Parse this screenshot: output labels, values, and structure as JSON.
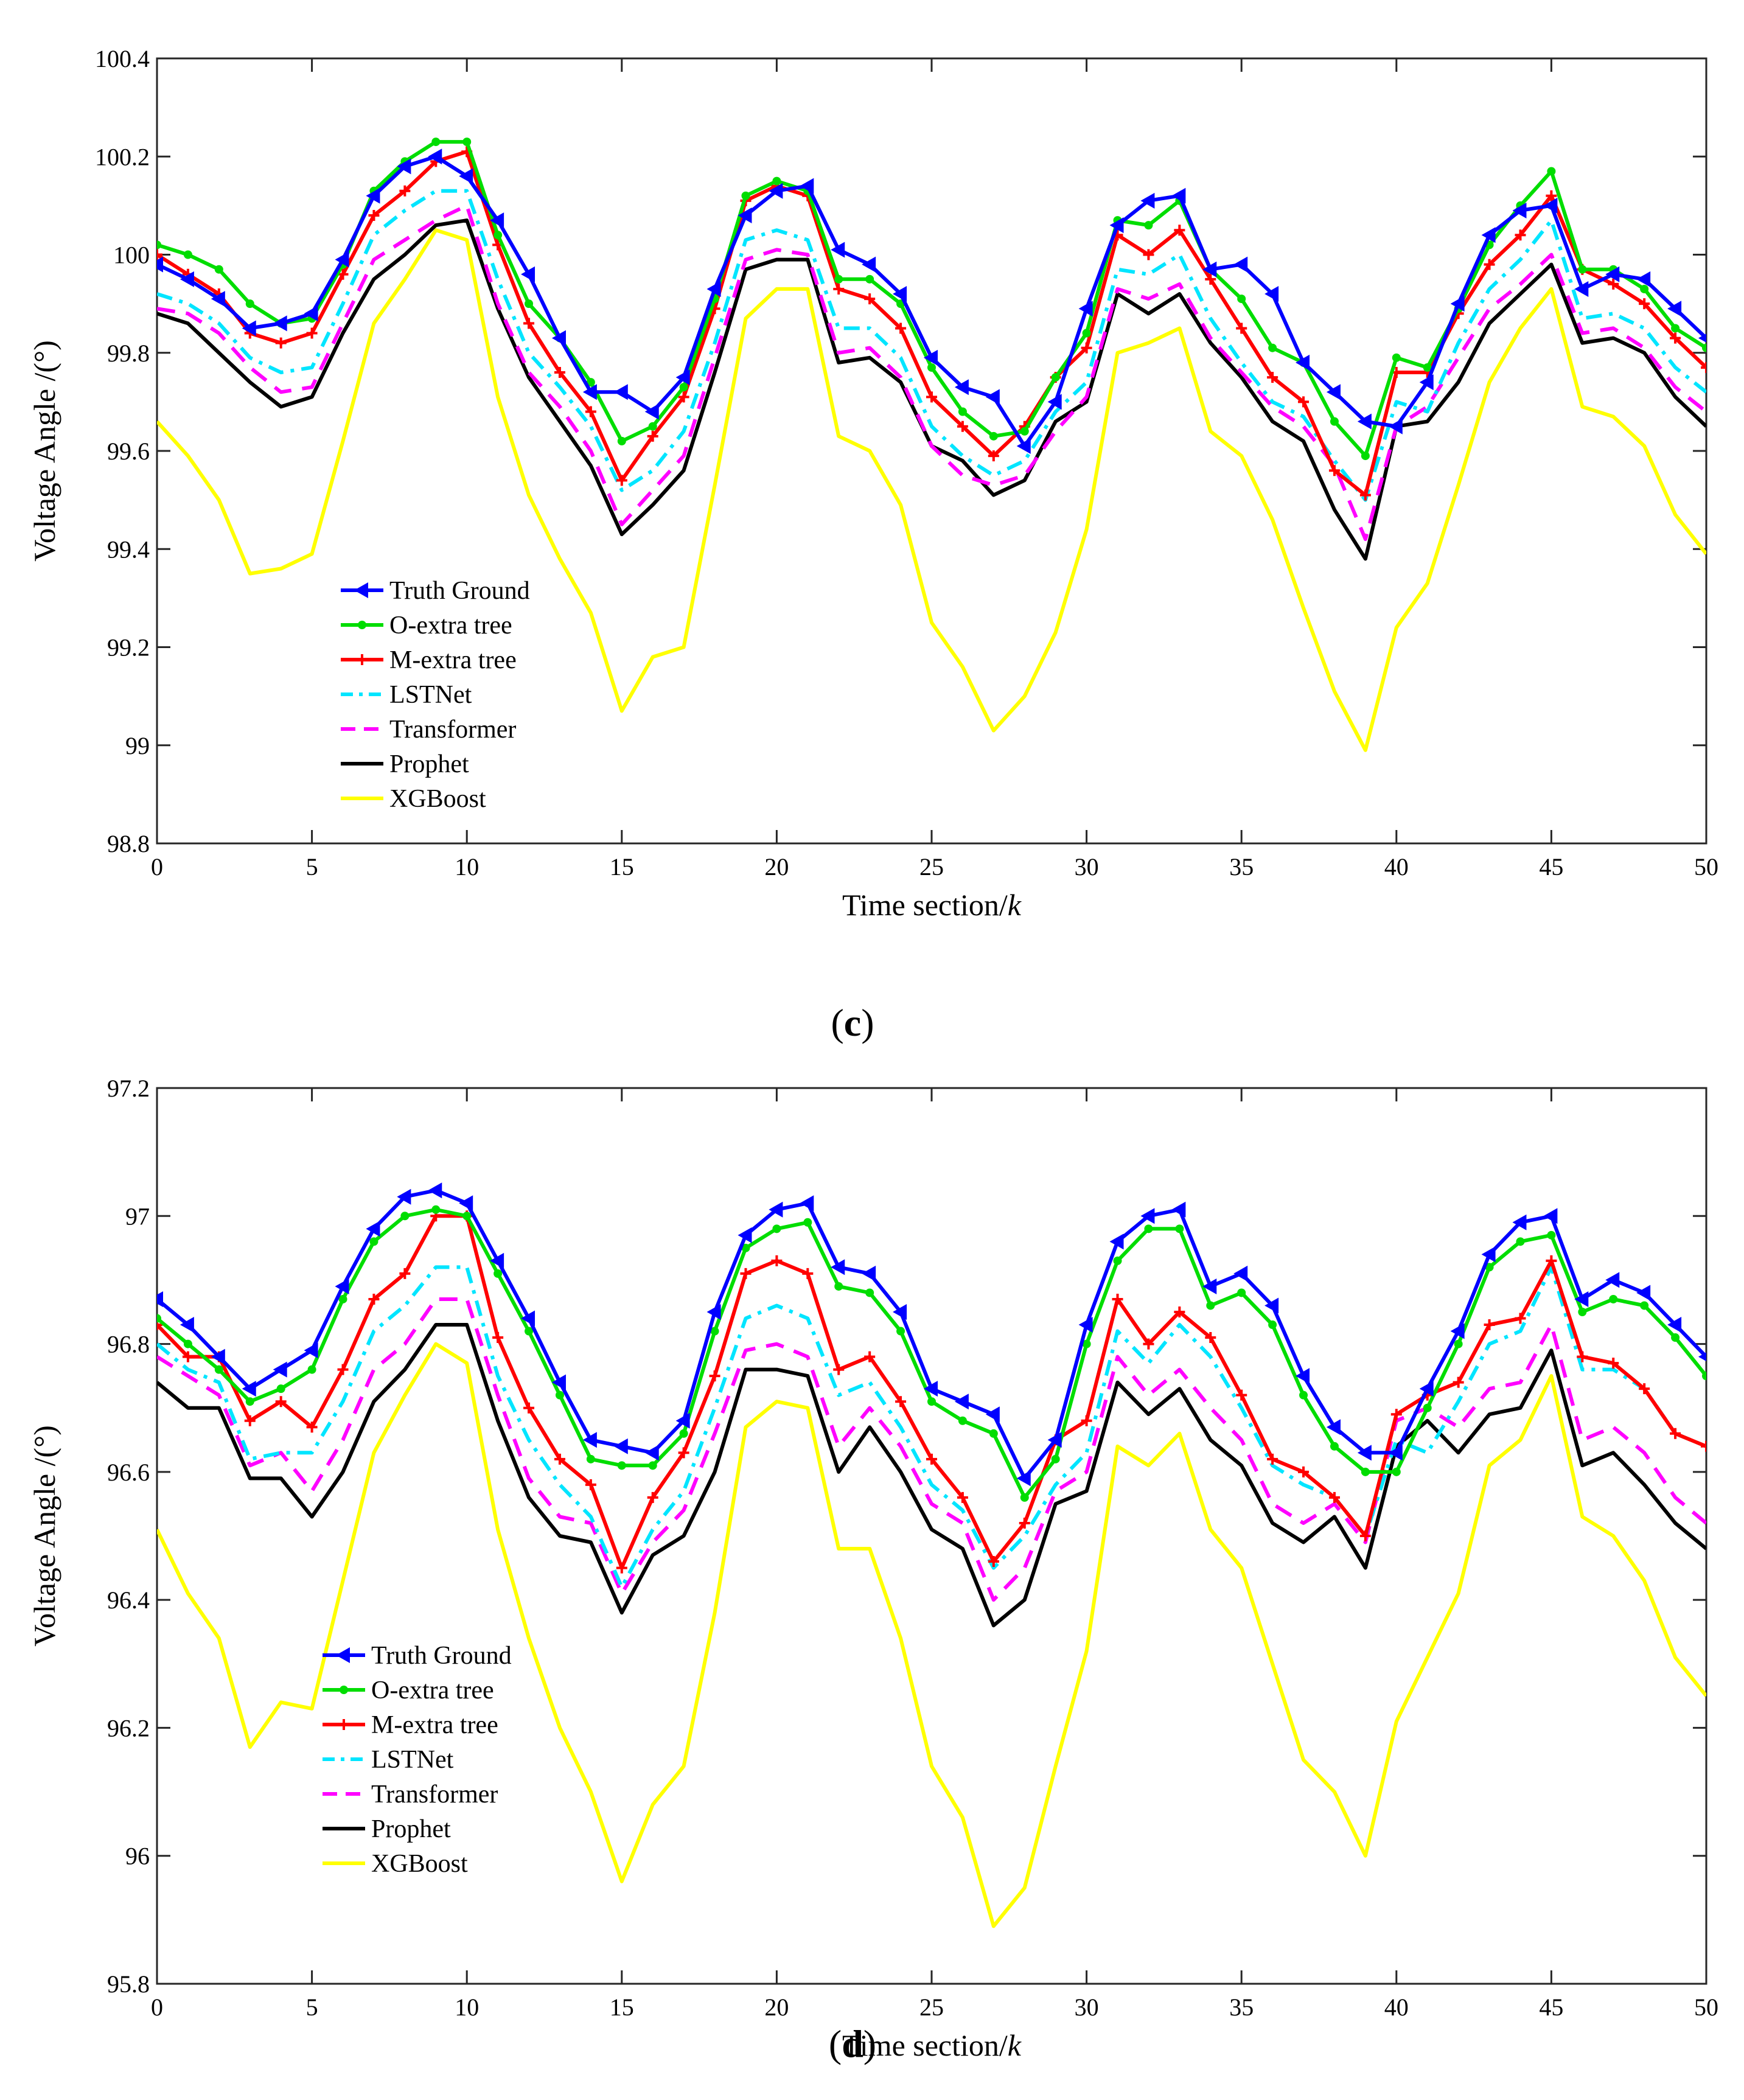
{
  "chart_data": [
    {
      "type": "line",
      "panel": "c",
      "caption": {
        "open": "(",
        "letter": "c",
        "close": ")"
      },
      "xlabel": "Time section/",
      "xlabel_var": "k",
      "ylabel": "Voltage Angle /(°)",
      "xlim": [
        0,
        50
      ],
      "ylim": [
        98.8,
        100.4
      ],
      "xticks": [
        0,
        5,
        10,
        15,
        20,
        25,
        30,
        35,
        40,
        45,
        50
      ],
      "xtick_labels": [
        "0",
        "5",
        "10",
        "15",
        "20",
        "25",
        "30",
        "35",
        "40",
        "45",
        "50"
      ],
      "yticks": [
        98.8,
        99,
        99.2,
        99.4,
        99.6,
        99.8,
        100,
        100.2,
        100.4
      ],
      "ytick_labels": [
        "98.8",
        "99",
        "99.2",
        "99.4",
        "99.6",
        "99.8",
        "100",
        "100.2",
        "100.4"
      ],
      "legend_position": "lower-left",
      "series": [
        {
          "name": "Truth Ground",
          "color": "#0000ff",
          "marker": "left-triangle",
          "dash": "solid",
          "values": [
            99.98,
            99.95,
            99.91,
            99.85,
            99.86,
            99.88,
            99.99,
            100.12,
            100.18,
            100.2,
            100.16,
            100.07,
            99.96,
            99.83,
            99.72,
            99.72,
            99.68,
            99.75,
            99.93,
            100.08,
            100.13,
            100.14,
            100.01,
            99.98,
            99.92,
            99.79,
            99.73,
            99.71,
            99.61,
            99.7,
            99.89,
            100.06,
            100.11,
            100.12,
            99.97,
            99.98,
            99.92,
            99.78,
            99.72,
            99.66,
            99.65,
            99.74,
            99.9,
            100.04,
            100.09,
            100.1,
            99.93,
            99.96,
            99.95,
            99.89,
            99.83
          ]
        },
        {
          "name": "O-extra tree",
          "color": "#00dd00",
          "marker": "dot",
          "dash": "solid",
          "values": [
            100.02,
            100.0,
            99.97,
            99.9,
            99.86,
            99.87,
            99.98,
            100.13,
            100.19,
            100.23,
            100.23,
            100.04,
            99.9,
            99.83,
            99.74,
            99.62,
            99.65,
            99.73,
            99.91,
            100.12,
            100.15,
            100.13,
            99.95,
            99.95,
            99.9,
            99.77,
            99.68,
            99.63,
            99.64,
            99.75,
            99.84,
            100.07,
            100.06,
            100.11,
            99.97,
            99.91,
            99.81,
            99.78,
            99.66,
            99.59,
            99.79,
            99.77,
            99.89,
            100.02,
            100.1,
            100.17,
            99.97,
            99.97,
            99.93,
            99.85,
            99.81
          ]
        },
        {
          "name": "M-extra tree",
          "color": "#ff0000",
          "marker": "plus",
          "dash": "solid",
          "values": [
            100.0,
            99.96,
            99.92,
            99.84,
            99.82,
            99.84,
            99.96,
            100.08,
            100.13,
            100.19,
            100.21,
            100.02,
            99.86,
            99.76,
            99.68,
            99.54,
            99.63,
            99.71,
            99.89,
            100.11,
            100.14,
            100.12,
            99.93,
            99.91,
            99.85,
            99.71,
            99.65,
            99.59,
            99.65,
            99.75,
            99.81,
            100.04,
            100.0,
            100.05,
            99.95,
            99.85,
            99.75,
            99.7,
            99.56,
            99.51,
            99.76,
            99.76,
            99.88,
            99.98,
            100.04,
            100.12,
            99.97,
            99.94,
            99.9,
            99.83,
            99.77
          ]
        },
        {
          "name": "LSTNet",
          "color": "#00e5ff",
          "marker": "none",
          "dash": "dashdot",
          "values": [
            99.92,
            99.9,
            99.86,
            99.79,
            99.76,
            99.77,
            99.9,
            100.04,
            100.09,
            100.13,
            100.13,
            99.95,
            99.8,
            99.73,
            99.65,
            99.52,
            99.56,
            99.64,
            99.82,
            100.03,
            100.05,
            100.03,
            99.85,
            99.85,
            99.79,
            99.65,
            99.59,
            99.55,
            99.58,
            99.68,
            99.74,
            99.97,
            99.96,
            100.0,
            99.87,
            99.78,
            99.7,
            99.67,
            99.58,
            99.5,
            99.7,
            99.68,
            99.82,
            99.93,
            99.99,
            100.07,
            99.87,
            99.88,
            99.85,
            99.77,
            99.72
          ]
        },
        {
          "name": "Transformer",
          "color": "#ff00ff",
          "marker": "none",
          "dash": "dashed",
          "values": [
            99.89,
            99.88,
            99.84,
            99.77,
            99.72,
            99.73,
            99.86,
            99.99,
            100.03,
            100.07,
            100.1,
            99.9,
            99.76,
            99.69,
            99.6,
            99.45,
            99.52,
            99.59,
            99.79,
            99.99,
            100.01,
            100.0,
            99.8,
            99.81,
            99.75,
            99.61,
            99.55,
            99.53,
            99.55,
            99.64,
            99.71,
            99.93,
            99.91,
            99.94,
            99.83,
            99.76,
            99.69,
            99.65,
            99.57,
            99.42,
            99.65,
            99.69,
            99.79,
            99.89,
            99.94,
            100.0,
            99.84,
            99.85,
            99.81,
            99.73,
            99.68
          ]
        },
        {
          "name": "Prophet",
          "color": "#000000",
          "marker": "none",
          "dash": "solid",
          "values": [
            99.88,
            99.86,
            99.8,
            99.74,
            99.69,
            99.71,
            99.84,
            99.95,
            100.0,
            100.06,
            100.07,
            99.89,
            99.75,
            99.66,
            99.57,
            99.43,
            99.49,
            99.56,
            99.76,
            99.97,
            99.99,
            99.99,
            99.78,
            99.79,
            99.74,
            99.61,
            99.58,
            99.51,
            99.54,
            99.66,
            99.7,
            99.92,
            99.88,
            99.92,
            99.82,
            99.75,
            99.66,
            99.62,
            99.48,
            99.38,
            99.65,
            99.66,
            99.74,
            99.86,
            99.92,
            99.98,
            99.82,
            99.83,
            99.8,
            99.71,
            99.65
          ]
        },
        {
          "name": "XGBoost",
          "color": "#ffff00",
          "marker": "none",
          "dash": "solid",
          "values": [
            99.66,
            99.59,
            99.5,
            99.35,
            99.36,
            99.39,
            99.62,
            99.86,
            99.95,
            100.05,
            100.03,
            99.71,
            99.51,
            99.38,
            99.27,
            99.07,
            99.18,
            99.2,
            99.53,
            99.87,
            99.93,
            99.93,
            99.63,
            99.6,
            99.49,
            99.25,
            99.16,
            99.03,
            99.1,
            99.23,
            99.44,
            99.8,
            99.82,
            99.85,
            99.64,
            99.59,
            99.46,
            99.28,
            99.11,
            98.99,
            99.24,
            99.33,
            99.53,
            99.74,
            99.85,
            99.93,
            99.69,
            99.67,
            99.61,
            99.47,
            99.39
          ]
        }
      ]
    },
    {
      "type": "line",
      "panel": "d",
      "caption": {
        "open": "(",
        "letter": "d",
        "close": ")"
      },
      "xlabel": "Time section/",
      "xlabel_var": "k",
      "ylabel": "Voltage Angle /(°)",
      "xlim": [
        0,
        50
      ],
      "ylim": [
        95.8,
        97.2
      ],
      "xticks": [
        0,
        5,
        10,
        15,
        20,
        25,
        30,
        35,
        40,
        45,
        50
      ],
      "xtick_labels": [
        "0",
        "5",
        "10",
        "15",
        "20",
        "25",
        "30",
        "35",
        "40",
        "45",
        "50"
      ],
      "yticks": [
        95.8,
        96,
        96.2,
        96.4,
        96.6,
        96.8,
        97,
        97.2
      ],
      "ytick_labels": [
        "95.8",
        "96",
        "96.2",
        "96.4",
        "96.6",
        "96.8",
        "97",
        "97.2"
      ],
      "legend_position": "lower-left",
      "series": [
        {
          "name": "Truth Ground",
          "color": "#0000ff",
          "marker": "left-triangle",
          "dash": "solid",
          "values": [
            96.87,
            96.83,
            96.78,
            96.73,
            96.76,
            96.79,
            96.89,
            96.98,
            97.03,
            97.04,
            97.02,
            96.93,
            96.84,
            96.74,
            96.65,
            96.64,
            96.63,
            96.68,
            96.85,
            96.97,
            97.01,
            97.02,
            96.92,
            96.91,
            96.85,
            96.73,
            96.71,
            96.69,
            96.59,
            96.65,
            96.83,
            96.96,
            97.0,
            97.01,
            96.89,
            96.91,
            96.86,
            96.75,
            96.67,
            96.63,
            96.63,
            96.73,
            96.82,
            96.94,
            96.99,
            97.0,
            96.87,
            96.9,
            96.88,
            96.83,
            96.78
          ]
        },
        {
          "name": "O-extra tree",
          "color": "#00dd00",
          "marker": "dot",
          "dash": "solid",
          "values": [
            96.84,
            96.8,
            96.76,
            96.71,
            96.73,
            96.76,
            96.87,
            96.96,
            97.0,
            97.01,
            97.0,
            96.91,
            96.82,
            96.72,
            96.62,
            96.61,
            96.61,
            96.66,
            96.82,
            96.95,
            96.98,
            96.99,
            96.89,
            96.88,
            96.82,
            96.71,
            96.68,
            96.66,
            96.56,
            96.62,
            96.8,
            96.93,
            96.98,
            96.98,
            96.86,
            96.88,
            96.83,
            96.72,
            96.64,
            96.6,
            96.6,
            96.7,
            96.8,
            96.92,
            96.96,
            96.97,
            96.85,
            96.87,
            96.86,
            96.81,
            96.75
          ]
        },
        {
          "name": "M-extra tree",
          "color": "#ff0000",
          "marker": "plus",
          "dash": "solid",
          "values": [
            96.83,
            96.78,
            96.78,
            96.68,
            96.71,
            96.67,
            96.76,
            96.87,
            96.91,
            97.0,
            97.0,
            96.81,
            96.7,
            96.62,
            96.58,
            96.45,
            96.56,
            96.63,
            96.75,
            96.91,
            96.93,
            96.91,
            96.76,
            96.78,
            96.71,
            96.62,
            96.56,
            96.46,
            96.52,
            96.65,
            96.68,
            96.87,
            96.8,
            96.85,
            96.81,
            96.72,
            96.62,
            96.6,
            96.56,
            96.5,
            96.69,
            96.72,
            96.74,
            96.83,
            96.84,
            96.93,
            96.78,
            96.77,
            96.73,
            96.66,
            96.64
          ]
        },
        {
          "name": "LSTNet",
          "color": "#00e5ff",
          "marker": "none",
          "dash": "dashdot",
          "values": [
            96.8,
            96.76,
            96.74,
            96.62,
            96.63,
            96.63,
            96.71,
            96.82,
            96.86,
            96.92,
            96.92,
            96.75,
            96.65,
            96.58,
            96.53,
            96.42,
            96.51,
            96.57,
            96.7,
            96.84,
            96.86,
            96.84,
            96.72,
            96.74,
            96.67,
            96.58,
            96.54,
            96.45,
            96.5,
            96.58,
            96.63,
            96.82,
            96.77,
            96.83,
            96.78,
            96.7,
            96.61,
            96.58,
            96.56,
            96.5,
            96.65,
            96.63,
            96.71,
            96.8,
            96.82,
            96.92,
            96.76,
            96.76,
            96.73,
            96.66,
            96.64
          ]
        },
        {
          "name": "Transformer",
          "color": "#ff00ff",
          "marker": "none",
          "dash": "dashed",
          "values": [
            96.78,
            96.75,
            96.72,
            96.61,
            96.63,
            96.57,
            96.65,
            96.76,
            96.8,
            96.87,
            96.87,
            96.72,
            96.59,
            96.53,
            96.52,
            96.41,
            96.49,
            96.54,
            96.66,
            96.79,
            96.8,
            96.78,
            96.64,
            96.7,
            96.64,
            96.55,
            96.52,
            96.4,
            96.45,
            96.57,
            96.6,
            96.78,
            96.72,
            96.76,
            96.7,
            96.65,
            96.55,
            96.52,
            96.55,
            96.49,
            96.68,
            96.7,
            96.67,
            96.73,
            96.74,
            96.83,
            96.65,
            96.67,
            96.63,
            96.56,
            96.52
          ]
        },
        {
          "name": "Prophet",
          "color": "#000000",
          "marker": "none",
          "dash": "solid",
          "values": [
            96.74,
            96.7,
            96.7,
            96.59,
            96.59,
            96.53,
            96.6,
            96.71,
            96.76,
            96.83,
            96.83,
            96.68,
            96.56,
            96.5,
            96.49,
            96.38,
            96.47,
            96.5,
            96.6,
            96.76,
            96.76,
            96.75,
            96.6,
            96.67,
            96.6,
            96.51,
            96.48,
            96.36,
            96.4,
            96.55,
            96.57,
            96.74,
            96.69,
            96.73,
            96.65,
            96.61,
            96.52,
            96.49,
            96.53,
            96.45,
            96.64,
            96.68,
            96.63,
            96.69,
            96.7,
            96.79,
            96.61,
            96.63,
            96.58,
            96.52,
            96.48
          ]
        },
        {
          "name": "XGBoost",
          "color": "#ffff00",
          "marker": "none",
          "dash": "solid",
          "values": [
            96.51,
            96.41,
            96.34,
            96.17,
            96.24,
            96.23,
            96.43,
            96.63,
            96.72,
            96.8,
            96.77,
            96.51,
            96.34,
            96.2,
            96.1,
            95.96,
            96.08,
            96.14,
            96.38,
            96.67,
            96.71,
            96.7,
            96.48,
            96.48,
            96.34,
            96.14,
            96.06,
            95.89,
            95.95,
            96.14,
            96.32,
            96.64,
            96.61,
            96.66,
            96.51,
            96.45,
            96.3,
            96.15,
            96.1,
            96.0,
            96.21,
            96.31,
            96.41,
            96.61,
            96.65,
            96.75,
            96.53,
            96.5,
            96.43,
            96.31,
            96.25
          ]
        }
      ]
    }
  ]
}
